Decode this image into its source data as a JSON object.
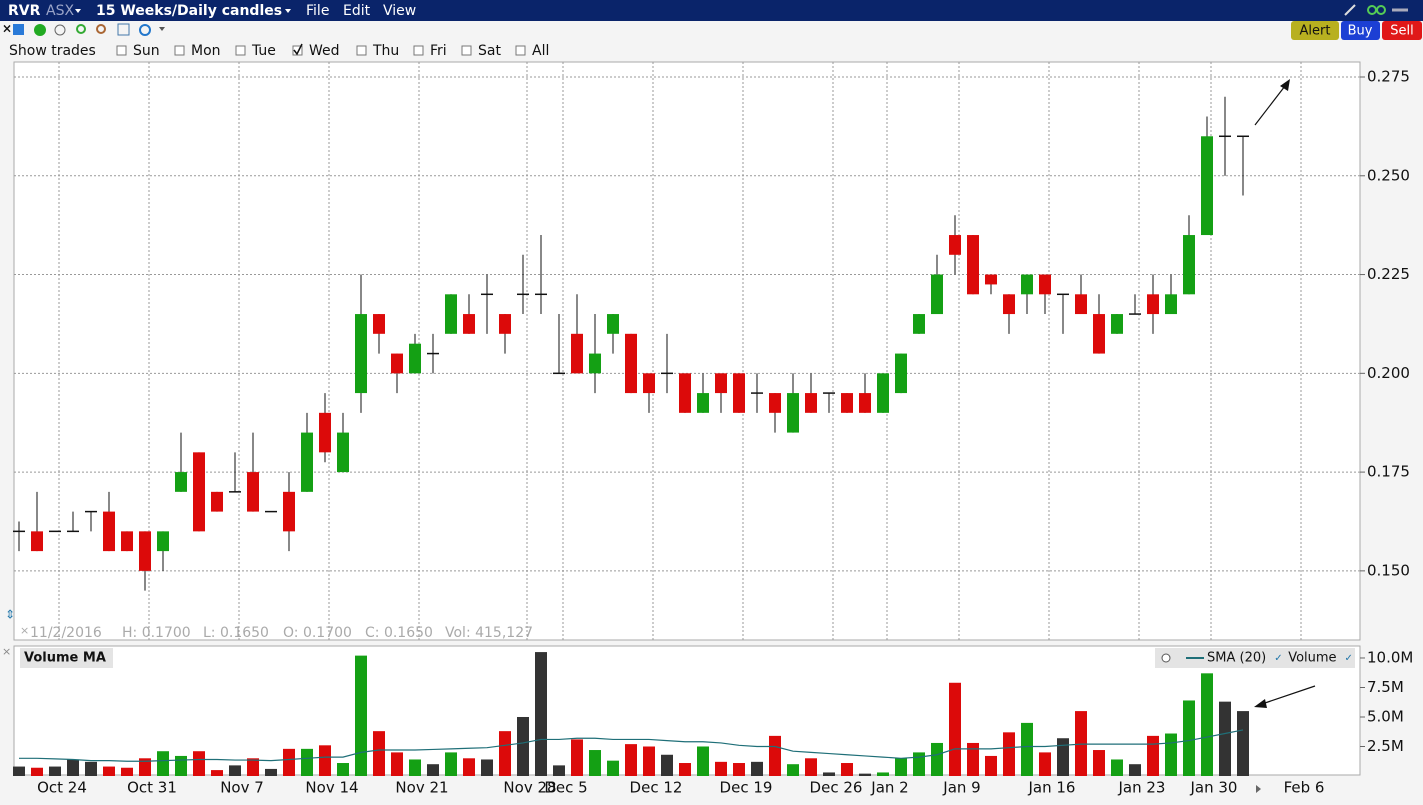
{
  "header": {
    "symbol": "RVR",
    "exchange": "ASX",
    "period": "15 Weeks/Daily candles",
    "menu": [
      "File",
      "Edit",
      "View"
    ],
    "buttons": [
      "Alert",
      "Buy",
      "Sell"
    ]
  },
  "trade_filter": {
    "label": "Show trades",
    "options": [
      {
        "label": "Sun",
        "checked": false
      },
      {
        "label": "Mon",
        "checked": false
      },
      {
        "label": "Tue",
        "checked": false
      },
      {
        "label": "Wed",
        "checked": true
      },
      {
        "label": "Thu",
        "checked": false
      },
      {
        "label": "Fri",
        "checked": false
      },
      {
        "label": "Sat",
        "checked": false
      },
      {
        "label": "All",
        "checked": false
      }
    ]
  },
  "status": {
    "date": "11/2/2016",
    "high": "H: 0.1700",
    "low": "L: 0.1650",
    "open": "O: 0.1700",
    "close": "C: 0.1650",
    "volume": "Vol: 415,127"
  },
  "chart_data": [
    {
      "type": "candlestick",
      "up_color": "#14a014",
      "down_color": "#dc0a0a",
      "flat_color": "#111111",
      "grid": true,
      "categories": [
        null,
        null,
        "Oct 24",
        null,
        null,
        null,
        null,
        "Oct 31",
        null,
        null,
        null,
        null,
        "Nov 7",
        null,
        null,
        null,
        null,
        "Nov 14",
        null,
        null,
        null,
        null,
        "Nov 21",
        null,
        null,
        null,
        null,
        null,
        "Nov 28",
        null,
        "Dec 5",
        null,
        null,
        null,
        null,
        "Dec 12",
        null,
        null,
        null,
        null,
        "Dec 19",
        null,
        null,
        null,
        null,
        "Dec 26",
        null,
        null,
        "Jan 2",
        null,
        null,
        null,
        "Jan 9",
        null,
        null,
        null,
        null,
        "Jan 16",
        null,
        null,
        null,
        null,
        "Jan 23",
        null,
        null,
        null,
        "Jan 30",
        null,
        null,
        null,
        null,
        "Feb 6"
      ],
      "open": [
        0.16,
        0.16,
        0.16,
        0.16,
        0.165,
        0.165,
        0.16,
        0.16,
        0.155,
        0.17,
        0.18,
        0.17,
        0.17,
        0.175,
        0.165,
        0.17,
        0.17,
        0.19,
        0.175,
        0.195,
        0.215,
        0.205,
        0.2,
        0.205,
        0.21,
        0.215,
        0.22,
        0.215,
        0.22,
        0.22,
        0.2,
        0.21,
        0.2,
        0.21,
        0.21,
        0.2,
        0.2,
        0.2,
        0.19,
        0.2,
        0.2,
        0.195,
        0.195,
        0.185,
        0.195,
        0.195,
        0.195,
        0.195,
        0.19,
        0.195,
        0.21,
        0.215,
        0.235,
        0.235,
        0.225,
        0.22,
        0.22,
        0.225,
        0.22,
        0.22,
        0.215,
        0.21,
        0.215,
        0.22,
        0.215,
        0.22,
        0.235,
        0.26,
        0.26,
        null,
        null,
        null
      ],
      "high": [
        0.1625,
        0.17,
        0.16,
        0.165,
        0.165,
        0.17,
        0.16,
        0.16,
        0.16,
        0.185,
        0.18,
        0.17,
        0.18,
        0.185,
        0.165,
        0.175,
        0.19,
        0.195,
        0.19,
        0.225,
        0.215,
        0.205,
        0.21,
        0.21,
        0.22,
        0.22,
        0.225,
        0.215,
        0.23,
        0.235,
        0.215,
        0.22,
        0.215,
        0.215,
        0.21,
        0.2,
        0.21,
        0.2,
        0.2,
        0.2,
        0.2,
        0.2,
        0.195,
        0.2,
        0.2,
        0.195,
        0.195,
        0.2,
        0.2,
        0.205,
        0.215,
        0.23,
        0.24,
        0.235,
        0.225,
        0.22,
        0.225,
        0.225,
        0.22,
        0.225,
        0.22,
        0.215,
        0.22,
        0.225,
        0.225,
        0.24,
        0.265,
        0.27,
        0.26,
        null,
        null,
        null
      ],
      "low": [
        0.155,
        0.155,
        0.16,
        0.16,
        0.16,
        0.155,
        0.155,
        0.145,
        0.15,
        0.17,
        0.16,
        0.165,
        0.17,
        0.165,
        0.165,
        0.155,
        0.17,
        0.1775,
        0.175,
        0.19,
        0.205,
        0.195,
        0.2,
        0.2,
        0.21,
        0.21,
        0.21,
        0.205,
        0.215,
        0.215,
        0.2,
        0.2,
        0.195,
        0.205,
        0.195,
        0.19,
        0.195,
        0.19,
        0.19,
        0.19,
        0.19,
        0.19,
        0.185,
        0.185,
        0.19,
        0.19,
        0.19,
        0.19,
        0.19,
        0.195,
        0.21,
        0.215,
        0.225,
        0.22,
        0.22,
        0.21,
        0.215,
        0.215,
        0.21,
        0.215,
        0.205,
        0.21,
        0.215,
        0.21,
        0.215,
        0.22,
        0.235,
        0.25,
        0.245,
        null,
        null,
        null
      ],
      "close": [
        0.16,
        0.155,
        0.16,
        0.16,
        0.165,
        0.155,
        0.155,
        0.15,
        0.16,
        0.175,
        0.16,
        0.165,
        0.17,
        0.165,
        0.165,
        0.16,
        0.185,
        0.18,
        0.185,
        0.215,
        0.21,
        0.2,
        0.2075,
        0.205,
        0.22,
        0.21,
        0.22,
        0.21,
        0.22,
        0.22,
        0.2,
        0.2,
        0.205,
        0.215,
        0.195,
        0.195,
        0.2,
        0.19,
        0.195,
        0.195,
        0.19,
        0.195,
        0.19,
        0.195,
        0.19,
        0.195,
        0.19,
        0.19,
        0.2,
        0.205,
        0.215,
        0.225,
        0.23,
        0.22,
        0.2225,
        0.215,
        0.225,
        0.22,
        0.22,
        0.215,
        0.205,
        0.215,
        0.215,
        0.215,
        0.22,
        0.235,
        0.26,
        0.26,
        0.26,
        null,
        null,
        null
      ],
      "ylim": [
        0.1325,
        0.2788
      ],
      "yticks": [
        {
          "value": 0.15,
          "label": "0.150"
        },
        0.175,
        {
          "value": 0.2,
          "label": "0.200"
        },
        0.225,
        {
          "value": 0.25,
          "label": "0.250"
        },
        0.275
      ]
    },
    {
      "type": "bar",
      "title": "Volume MA",
      "series": [
        {
          "name": "SMA (20)",
          "type": "line",
          "color": "#1f6f78",
          "values": [
            1500000,
            1500000,
            1450000,
            1400000,
            1300000,
            1300000,
            1250000,
            1250000,
            1300000,
            1350000,
            1400000,
            1400000,
            1350000,
            1350000,
            1300000,
            1400000,
            1500000,
            1600000,
            1600000,
            2000000,
            2200000,
            2200000,
            2200000,
            2250000,
            2300000,
            2350000,
            2400000,
            2600000,
            2800000,
            3100000,
            3100000,
            3200000,
            3200000,
            3100000,
            3100000,
            3100000,
            3000000,
            2900000,
            2900000,
            2800000,
            2600000,
            2500000,
            2500000,
            2100000,
            2000000,
            1900000,
            1800000,
            1700000,
            1600000,
            1500000,
            1600000,
            1800000,
            2300000,
            2300000,
            2300000,
            2400000,
            2500000,
            2500000,
            2600000,
            2700000,
            2700000,
            2700000,
            2700000,
            2700000,
            2800000,
            3000000,
            3300000,
            3600000,
            3900000,
            null,
            null,
            null
          ]
        },
        {
          "name": "Volume",
          "type": "bar",
          "values": [
            800000,
            700000,
            800000,
            1400000,
            1200000,
            800000,
            700000,
            1500000,
            2100000,
            1700000,
            2100000,
            500000,
            900000,
            1500000,
            600000,
            2300000,
            2300000,
            2600000,
            1100000,
            10200000,
            3800000,
            2000000,
            1400000,
            1000000,
            2000000,
            1500000,
            1400000,
            3800000,
            5000000,
            10500000,
            900000,
            3100000,
            2200000,
            1300000,
            2700000,
            2500000,
            1800000,
            1100000,
            2500000,
            1200000,
            1100000,
            1200000,
            3400000,
            1000000,
            1500000,
            300000,
            1100000,
            200000,
            300000,
            1500000,
            2000000,
            2800000,
            7900000,
            2800000,
            1700000,
            3700000,
            4500000,
            2000000,
            3200000,
            5500000,
            2200000,
            1400000,
            1000000,
            3400000,
            3600000,
            6400000,
            8700000,
            6300000,
            5500000,
            null,
            null,
            null
          ],
          "colors": [
            "#333333",
            "#dc0a0a",
            "#333333",
            "#333333",
            "#333333",
            "#dc0a0a",
            "#dc0a0a",
            "#dc0a0a",
            "#14a014",
            "#14a014",
            "#dc0a0a",
            "#dc0a0a",
            "#333333",
            "#dc0a0a",
            "#333333",
            "#dc0a0a",
            "#14a014",
            "#dc0a0a",
            "#14a014",
            "#14a014",
            "#dc0a0a",
            "#dc0a0a",
            "#14a014",
            "#333333",
            "#14a014",
            "#dc0a0a",
            "#333333",
            "#dc0a0a",
            "#333333",
            "#333333",
            "#333333",
            "#dc0a0a",
            "#14a014",
            "#14a014",
            "#dc0a0a",
            "#dc0a0a",
            "#333333",
            "#dc0a0a",
            "#14a014",
            "#dc0a0a",
            "#dc0a0a",
            "#333333",
            "#dc0a0a",
            "#14a014",
            "#dc0a0a",
            "#333333",
            "#dc0a0a",
            "#333333",
            "#14a014",
            "#14a014",
            "#14a014",
            "#14a014",
            "#dc0a0a",
            "#dc0a0a",
            "#dc0a0a",
            "#dc0a0a",
            "#14a014",
            "#dc0a0a",
            "#333333",
            "#dc0a0a",
            "#dc0a0a",
            "#14a014",
            "#333333",
            "#dc0a0a",
            "#14a014",
            "#14a014",
            "#14a014",
            "#333333",
            "#333333",
            null,
            null,
            null
          ]
        }
      ],
      "ylim": [
        0,
        11100000
      ],
      "yticks": [
        {
          "value": 2500000,
          "label": "2.5M"
        },
        {
          "value": 5000000,
          "label": "5.0M"
        },
        {
          "value": 7500000,
          "label": "7.5M"
        },
        {
          "value": 10000000,
          "label": "10.0M"
        }
      ]
    }
  ]
}
